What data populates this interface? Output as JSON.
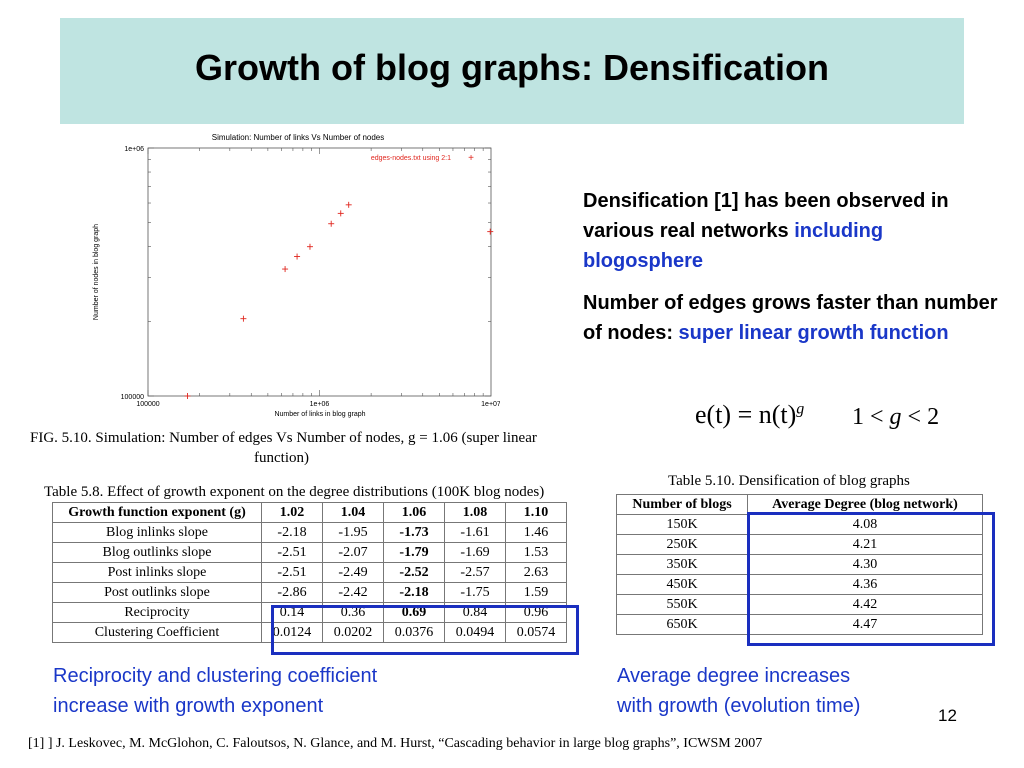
{
  "slide": {
    "title": "Growth of blog graphs: Densification",
    "page_number": "12",
    "reference": "[1] ] J. Leskovec, M. McGlohon, C. Faloutsos, N. Glance, and M. Hurst, “Cascading behavior in large blog graphs”, ICWSM 2007"
  },
  "figure": {
    "caption_line1": "FIG. 5.10. Simulation: Number of edges Vs Number of nodes, g = 1.06 (super linear",
    "caption_line2": "function)"
  },
  "chart_data": {
    "type": "scatter",
    "title": "Simulation: Number of links Vs Number of nodes",
    "xlabel": "Number of links in blog graph",
    "ylabel": "Number of nodes in blog graph",
    "x_scale": "log",
    "y_scale": "log",
    "xlim": [
      100000,
      10000000
    ],
    "ylim": [
      100000,
      1000000
    ],
    "x_tick_labels": [
      "100000",
      "1e+06",
      "1e+07"
    ],
    "y_tick_labels": [
      "100000",
      "1e+06"
    ],
    "legend": "edges-nodes.txt  using 2:1",
    "legend_position": "top-right",
    "marker_color": "#e0261e",
    "series": [
      {
        "x": [
          170000,
          360000,
          630000,
          740000,
          880000,
          1170000,
          1330000,
          1480000,
          9900000
        ],
        "y": [
          100000,
          205000,
          325000,
          365000,
          400000,
          495000,
          545000,
          590000,
          460000
        ]
      }
    ]
  },
  "bullets": {
    "b1_text": "Densification [1] has been observed in various real networks ",
    "b1_highlight": "including blogosphere",
    "b2_text": "Number of edges grows faster than number of nodes: ",
    "b2_highlight": "super linear growth function"
  },
  "formula": {
    "main": "e(t) = n(t)",
    "exponent": "g",
    "ineq_left": "1 < ",
    "ineq_var": "g",
    "ineq_right": " < 2"
  },
  "table1": {
    "caption": "Table 5.8. Effect of growth exponent on the degree distributions (100K blog nodes)",
    "headers": [
      "Growth function exponent (g)",
      "1.02",
      "1.04",
      "1.06",
      "1.08",
      "1.10"
    ],
    "rows": [
      [
        "Blog inlinks slope",
        "-2.18",
        "-1.95",
        "-1.73",
        "-1.61",
        "1.46"
      ],
      [
        "Blog outlinks slope",
        "-2.51",
        "-2.07",
        "-1.79",
        "-1.69",
        "1.53"
      ],
      [
        "Post inlinks slope",
        "-2.51",
        "-2.49",
        "-2.52",
        "-2.57",
        "2.63"
      ],
      [
        "Post outlinks slope",
        "-2.86",
        "-2.42",
        "-2.18",
        "-1.75",
        "1.59"
      ],
      [
        "Reciprocity",
        "0.14",
        "0.36",
        "0.69",
        "0.84",
        "0.96"
      ],
      [
        "Clustering Coefficient",
        "0.0124",
        "0.0202",
        "0.0376",
        "0.0494",
        "0.0574"
      ]
    ]
  },
  "table2": {
    "caption": "Table 5.10. Densification of blog graphs",
    "headers": [
      "Number of blogs",
      "Average Degree (blog network)"
    ],
    "rows": [
      [
        "150K",
        "4.08"
      ],
      [
        "250K",
        "4.21"
      ],
      [
        "350K",
        "4.30"
      ],
      [
        "450K",
        "4.36"
      ],
      [
        "550K",
        "4.42"
      ],
      [
        "650K",
        "4.47"
      ]
    ]
  },
  "notes": {
    "left_line1": "Reciprocity and clustering coefficient",
    "left_line2": "increase with growth exponent",
    "right_line1": "Average degree increases",
    "right_line2": "with growth (evolution time)"
  }
}
